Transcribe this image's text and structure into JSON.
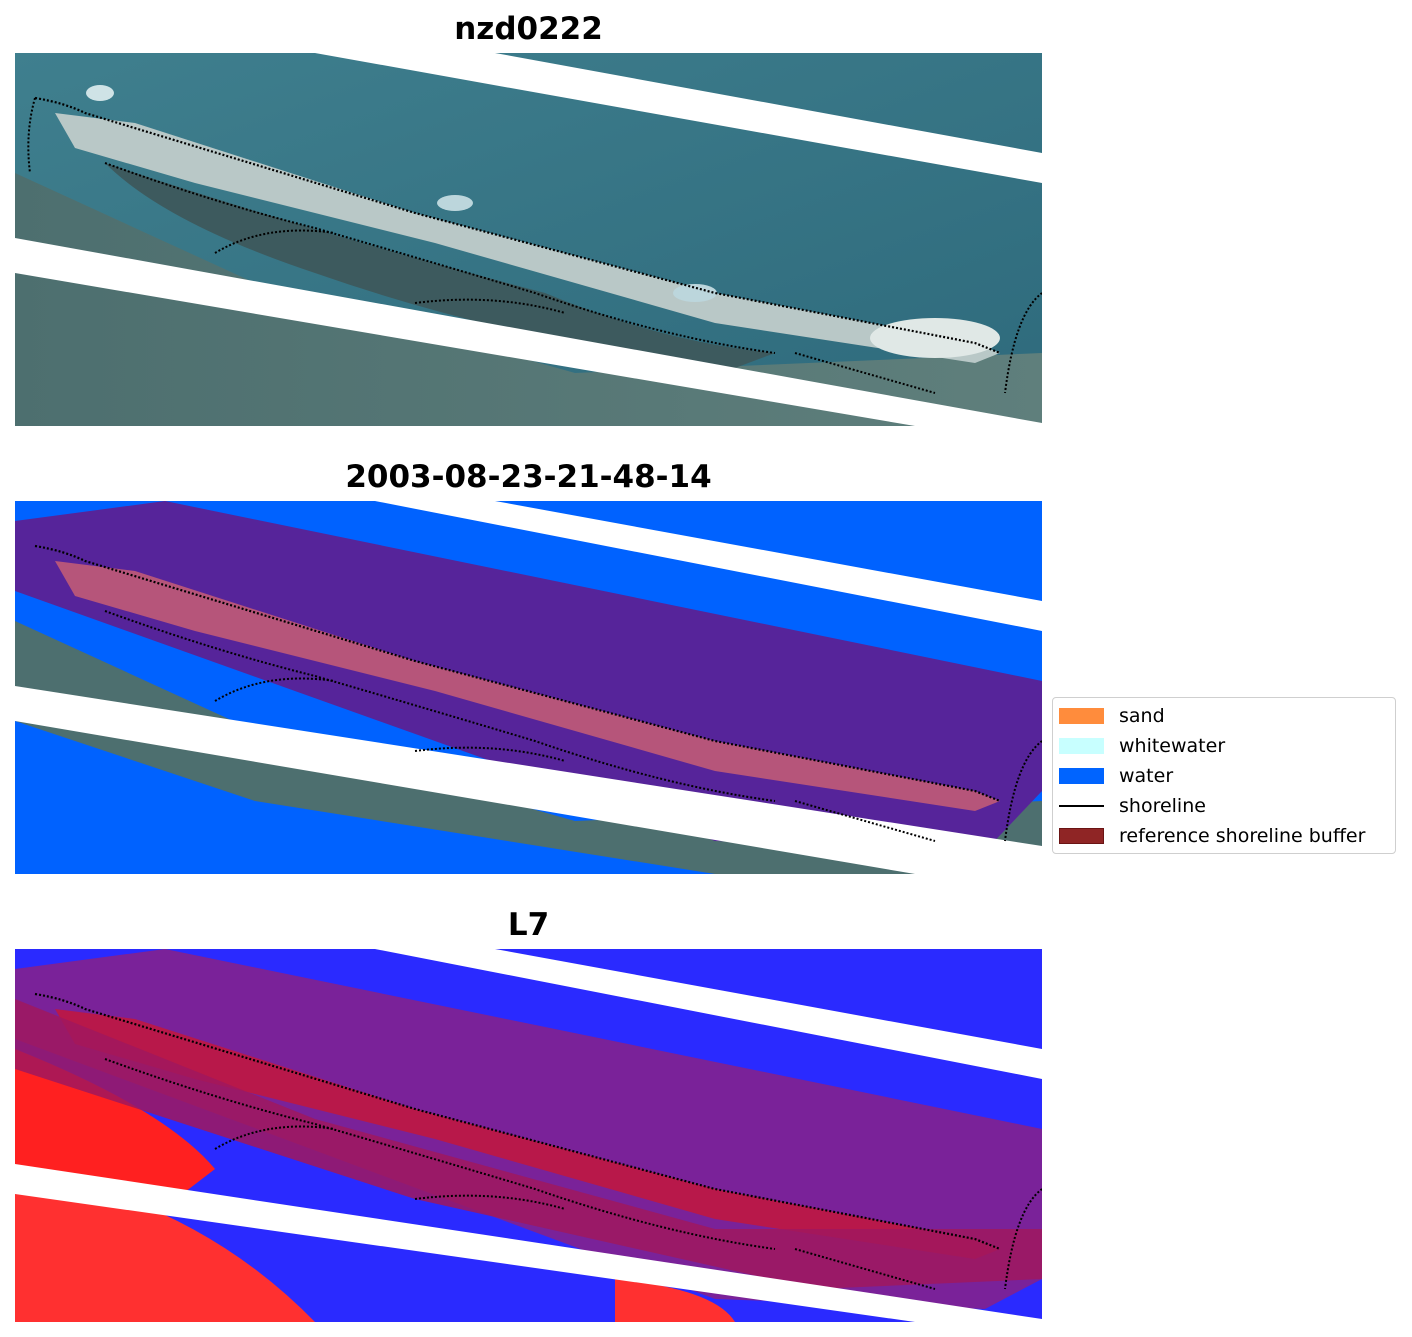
{
  "panels": [
    {
      "title": "nzd0222"
    },
    {
      "title": "2003-08-23-21-48-14"
    },
    {
      "title": "L7"
    }
  ],
  "legend": {
    "items": [
      {
        "label": "sand",
        "color": "#ff8c3c"
      },
      {
        "label": "whitewater",
        "color": "#c8ffff"
      },
      {
        "label": "water",
        "color": "#0064ff"
      },
      {
        "label": "shoreline",
        "color": "#000000"
      },
      {
        "label": "reference shoreline buffer",
        "color": "#8f2525"
      }
    ]
  }
}
